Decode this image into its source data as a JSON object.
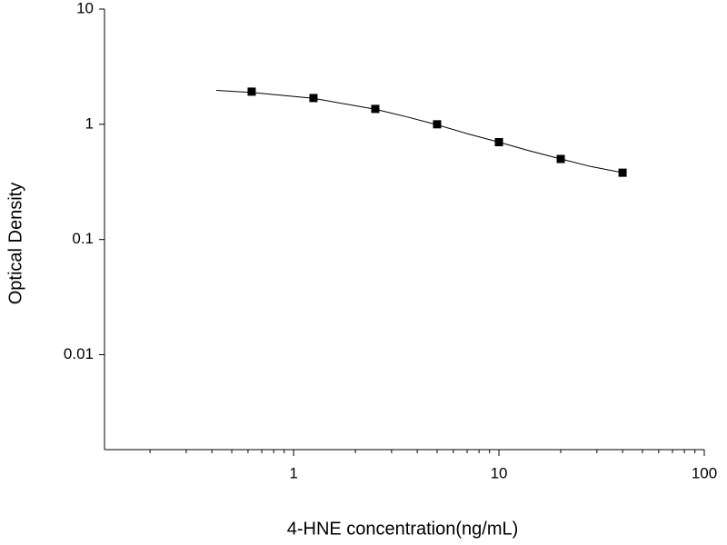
{
  "chart_data": {
    "type": "scatter",
    "xlabel": "4-HNE concentration(ng/mL)",
    "ylabel": "Optical Density",
    "xlog": true,
    "ylog": true,
    "x_minor_ticks": true,
    "xlim": [
      0.12,
      100
    ],
    "ylim": [
      0.0015,
      10
    ],
    "xticks": [
      1,
      10,
      100
    ],
    "yticks": [
      10,
      1,
      0.1,
      0.01
    ],
    "series": [
      {
        "color": "#000000",
        "marker": "square",
        "x": [
          0.625,
          1.25,
          2.5,
          5,
          10,
          20,
          40
        ],
        "values": [
          1.92,
          1.69,
          1.36,
          1.0,
          0.7,
          0.5,
          0.38
        ]
      },
      {
        "color": "#000000",
        "marker": "line",
        "x": [
          0.42,
          0.625,
          1.25,
          2.5,
          3.5,
          5,
          7,
          10,
          14,
          20,
          28,
          40
        ],
        "values": [
          1.97,
          1.89,
          1.68,
          1.35,
          1.17,
          0.99,
          0.83,
          0.7,
          0.59,
          0.5,
          0.43,
          0.38
        ]
      }
    ]
  }
}
